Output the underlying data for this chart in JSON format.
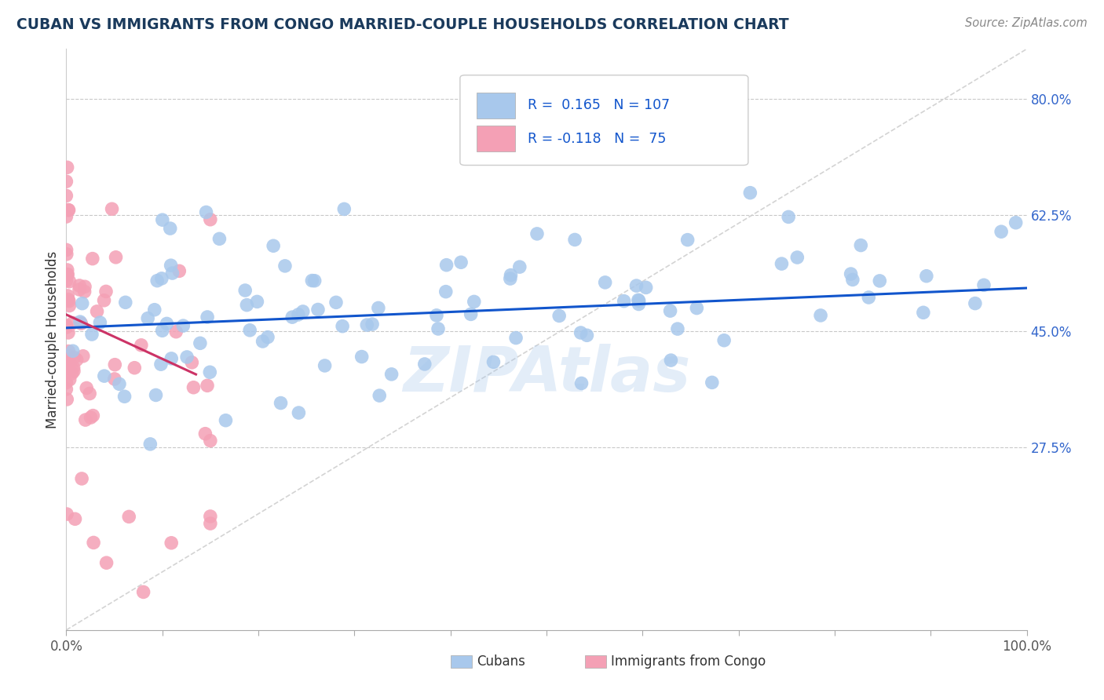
{
  "title": "CUBAN VS IMMIGRANTS FROM CONGO MARRIED-COUPLE HOUSEHOLDS CORRELATION CHART",
  "source": "Source: ZipAtlas.com",
  "ylabel": "Married-couple Households",
  "xlim": [
    0.0,
    1.0
  ],
  "ylim": [
    0.0,
    0.875
  ],
  "yticks": [
    0.275,
    0.45,
    0.625,
    0.8
  ],
  "ytick_labels": [
    "27.5%",
    "45.0%",
    "62.5%",
    "80.0%"
  ],
  "xtick_labels": [
    "0.0%",
    "100.0%"
  ],
  "xticks": [
    0.0,
    0.1,
    0.2,
    0.3,
    0.4,
    0.5,
    0.6,
    0.7,
    0.8,
    0.9,
    1.0
  ],
  "legend_labels": [
    "Cubans",
    "Immigrants from Congo"
  ],
  "blue_color": "#a8c8ec",
  "pink_color": "#f4a0b5",
  "blue_line_color": "#1155cc",
  "pink_line_color": "#cc3366",
  "diagonal_color": "#cccccc",
  "R_blue": 0.165,
  "N_blue": 107,
  "R_pink": -0.118,
  "N_pink": 75,
  "watermark": "ZIPAtlas",
  "watermark_color": "#a8c8ec",
  "background_color": "#ffffff",
  "grid_color": "#bbbbbb",
  "title_color": "#1a3a5c",
  "source_color": "#888888",
  "legend_text_color": "#1155cc",
  "blue_line_x": [
    0.0,
    1.0
  ],
  "blue_line_y": [
    0.455,
    0.515
  ],
  "pink_line_x": [
    0.0,
    0.135
  ],
  "pink_line_y": [
    0.475,
    0.385
  ]
}
